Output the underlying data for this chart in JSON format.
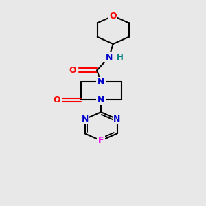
{
  "bg_color": "#e8e8e8",
  "bond_color": "#000000",
  "N_color": "#0000cc",
  "O_color": "#ff0000",
  "F_color": "#ee00ee",
  "H_color": "#008080",
  "line_width": 1.5,
  "figsize": [
    3.0,
    3.0
  ],
  "dpi": 100,
  "xlim": [
    0,
    10
  ],
  "ylim": [
    0,
    13
  ]
}
